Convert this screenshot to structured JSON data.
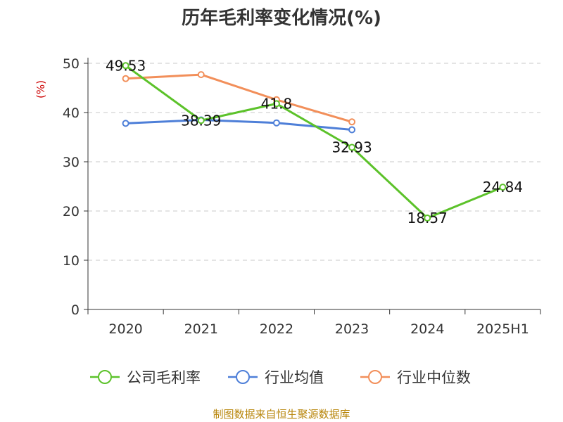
{
  "chart_data": {
    "type": "line",
    "title": "历年毛利率变化情况(%)",
    "ylabel": "(%)",
    "xlabel": "",
    "categories": [
      "2020",
      "2021",
      "2022",
      "2023",
      "2024",
      "2025H1"
    ],
    "ylim": [
      0,
      50
    ],
    "yticks": [
      0,
      10,
      20,
      30,
      40,
      50
    ],
    "grid": true,
    "legend_position": "bottom",
    "series": [
      {
        "name": "公司毛利率",
        "color": "#5cc22a",
        "values": [
          49.53,
          38.39,
          41.8,
          32.93,
          18.57,
          24.84
        ],
        "labels": [
          "49.53",
          "38.39",
          "41.8",
          "32.93",
          "18.57",
          "24.84"
        ]
      },
      {
        "name": "行业均值",
        "color": "#4e7fd8",
        "values": [
          37.8,
          38.5,
          37.9,
          36.5,
          null,
          null
        ]
      },
      {
        "name": "行业中位数",
        "color": "#f28f5a",
        "values": [
          46.9,
          47.7,
          42.6,
          38.1,
          null,
          null
        ]
      }
    ]
  },
  "source": "制图数据来自恒生聚源数据库"
}
